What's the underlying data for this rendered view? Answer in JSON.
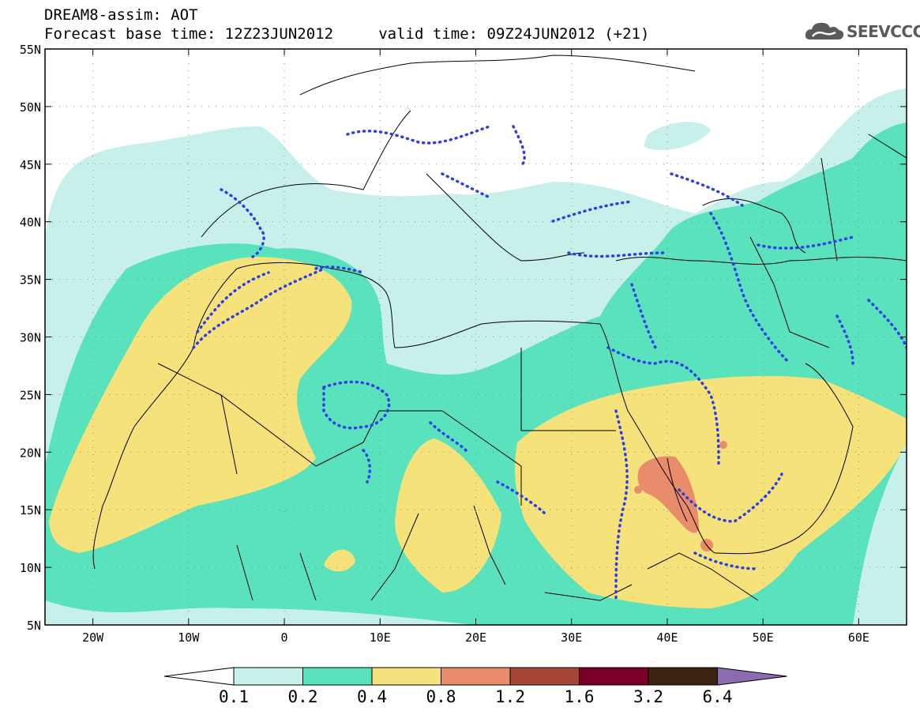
{
  "header": {
    "line1": "DREAM8-assim: AOT",
    "line2": "Forecast base time: 12Z23JUN2012     valid time: 09Z24JUN2012 (+21)"
  },
  "logo": {
    "text": "SEEVCCC",
    "icon": "cloud-logo-icon"
  },
  "map": {
    "lat_labels": [
      "55N",
      "50N",
      "45N",
      "40N",
      "35N",
      "30N",
      "25N",
      "20N",
      "15N",
      "10N",
      "5N"
    ],
    "lon_labels": [
      "20W",
      "10W",
      "0",
      "10E",
      "20E",
      "30E",
      "40E",
      "50E",
      "60E"
    ],
    "lon_range": [
      -25,
      65
    ],
    "lat_range": [
      5,
      55
    ]
  },
  "colorbar": {
    "values": [
      "0.1",
      "0.2",
      "0.4",
      "0.8",
      "1.2",
      "1.6",
      "3.2",
      "6.4"
    ],
    "colors": [
      "#ffffff",
      "#c8f0eb",
      "#5ae2bd",
      "#f6e27b",
      "#e98c6b",
      "#a64636",
      "#7a0027",
      "#3d2412",
      "#8c6bb1"
    ]
  },
  "colors": {
    "aot_0_1": "#c8f0eb",
    "aot_0_2": "#5ae2bd",
    "aot_0_4": "#f6e27b",
    "aot_0_8": "#e98c6b",
    "obs_contour": "#2c3ee8",
    "borders": "#000000"
  }
}
